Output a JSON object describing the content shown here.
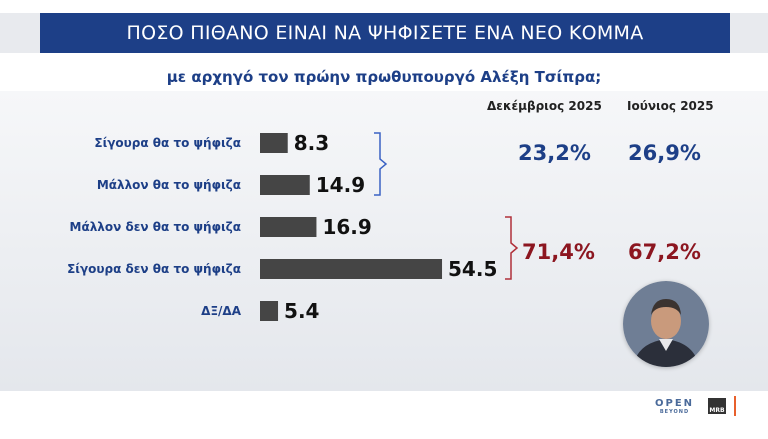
{
  "header": {
    "title": "ΠΟΣΟ ΠΙΘΑΝΟ ΕΙΝΑΙ ΝΑ ΨΗΦΙΣΕΤΕ ΕΝΑ ΝΕΟ ΚΟΜΜΑ",
    "subtitle": "με αρχηγό τον πρώην πρωθυπουργό Αλέξη Τσίπρα;"
  },
  "columns": [
    "Δεκέμβριος 2025",
    "Ιούνιος 2025"
  ],
  "summary": {
    "positive": {
      "december": "23,2%",
      "june": "26,9%"
    },
    "negative": {
      "december": "71,4%",
      "june": "67,2%"
    }
  },
  "colors": {
    "title_band": "#1d3f87",
    "bar": "#454545",
    "positive_text": "#1d3f87",
    "negative_text": "#8c1620",
    "bracket_positive": "#3a62c4",
    "bracket_negative": "#b0303a"
  },
  "chart_data": {
    "type": "bar",
    "orientation": "horizontal",
    "categories": [
      "Σίγουρα θα το ψήφιζα",
      "Μάλλον θα το ψήφιζα",
      "Μάλλον δεν θα το ψήφιζα",
      "Σίγουρα δεν θα το ψήφιζα",
      "ΔΞ/ΔΑ"
    ],
    "values": [
      8.3,
      14.9,
      16.9,
      54.5,
      5.4
    ],
    "value_labels": [
      "8.3",
      "14.9",
      "16.9",
      "54.5",
      "5.4"
    ],
    "title": "ΠΟΣΟ ΠΙΘΑΝΟ ΕΙΝΑΙ ΝΑ ΨΗΦΙΣΕΤΕ ΕΝΑ ΝΕΟ ΚΟΜΜΑ",
    "subtitle": "με αρχηγό τον πρώην πρωθυπουργό Αλέξη Τσίπρα;",
    "xlabel": "",
    "ylabel": "",
    "xlim": [
      0,
      60
    ],
    "grid": false,
    "legend": "none"
  },
  "footer": {
    "logo_text": "OPEN",
    "logo_sub": "BEYOND",
    "pollster": "MRB"
  }
}
